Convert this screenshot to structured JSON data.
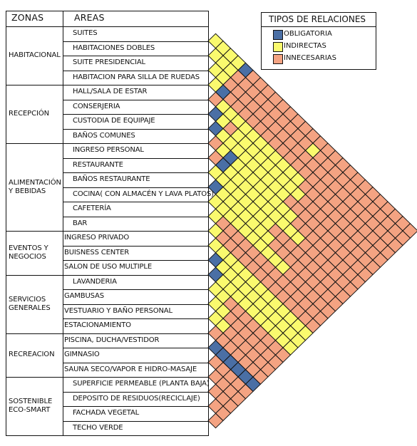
{
  "headers": {
    "zones": "ZONAS",
    "areas": "AREAS"
  },
  "legend": {
    "title": "TIPOS DE RELACIONES",
    "items": [
      {
        "label": "OBLIGATORIA",
        "color": "#4a6fa5",
        "key": "O"
      },
      {
        "label": "INDIRECTAS",
        "color": "#fafa6e",
        "key": "I"
      },
      {
        "label": "INNECESARIAS",
        "color": "#f4a382",
        "key": "N"
      }
    ]
  },
  "zones": [
    {
      "name": "HABITACIONAL",
      "rows": 4
    },
    {
      "name": "RECEPCIÓN",
      "rows": 4
    },
    {
      "name": "ALIMENTACIÓN\nY BEBIDAS",
      "rows": 6
    },
    {
      "name": "EVENTOS Y\nNEGOCIOS",
      "rows": 3
    },
    {
      "name": "SERVICIOS\nGENERALES",
      "rows": 4
    },
    {
      "name": "RECREACION",
      "rows": 3
    },
    {
      "name": "SOSTENIBLE\nECO-SMART",
      "rows": 4
    }
  ],
  "areas": [
    "SUITES",
    "HABITACIONES DOBLES",
    "SUITE PRESIDENCIAL",
    "HABITACION PARA SILLA DE RUEDAS",
    "HALL/SALA DE ESTAR",
    "CONSERJERIA",
    "CUSTODIA DE EQUIPAJE",
    "BAÑOS COMUNES",
    "INGRESO PERSONAL",
    "RESTAURANTE",
    "BAÑOS RESTAURANTE",
    "COCINA( CON ALMACÉN Y LAVA PLATOS)",
    "CAFETERÍA",
    "BAR",
    "INGRESO PRIVADO",
    "BUISNESS CENTER",
    "SALON DE USO MULTIPLE",
    "LAVANDERIA",
    "GAMBUSAS",
    "VESTUARIO Y BAÑO PERSONAL",
    "ESTACIONAMIENTO",
    "PISCINA, DUCHA/VESTIDOR",
    "GIMNASIO",
    "SAUNA SECO/VAPOR E HIDRO-MASAJE",
    "SUPERFICIE PERMEABLE (PLANTA BAJA)",
    "DEPOSITO DE RESIDUOS(RECICLAJE)",
    "FACHADA VEGETAL",
    "TECHO VERDE"
  ],
  "matrix_rows": [
    "IIIINNNNNNNNNNNNNNNNNNNNNNN",
    "IIINNNNNNNNNNNNNNNNNNNNNNN",
    "IINNNNNNNNNNNNNNNNNNNNNNN",
    "INNNNNNNNNNNNNNNNNNNNNNN",
    "OIIIIIIIIIIINNNNNNNNNNN",
    "OIIIIIIIIIIINNNNNNNNNN",
    "OIIIIIIIIINNNNNNNNNNN",
    "NIOIIIIIIIINNNNNNNNN",
    "NOIIIIIIIIIINNNNNNN",
    "IIIIIIIINNNNNNNNNN",
    "OIIIIIIINNNNNNNNN",
    "IIIIIIIIIINNNNNN",
    "INNNNNNNNNNNNNN",
    "INNNNNNNNNNNNN",
    "IIIIIIIIIIIII",
    "OIIIIIIIIIII",
    "OIIIIIIIIII",
    "IINNNNNNNN",
    "IINNNNNNN",
    "IINNNNNN",
    "NNNNNNN",
    "OOOOOO",
    "NNNNN",
    "NNNN",
    "NNN",
    "NN",
    "N"
  ],
  "matrix_overrides": [
    {
      "row": 0,
      "col": 4,
      "key": "O"
    },
    {
      "row": 3,
      "col": 1,
      "key": "O"
    },
    {
      "row": 4,
      "col": 0,
      "key": "N"
    },
    {
      "row": 5,
      "col": 2,
      "key": "N"
    },
    {
      "row": 1,
      "col": 13,
      "key": "I"
    }
  ]
}
